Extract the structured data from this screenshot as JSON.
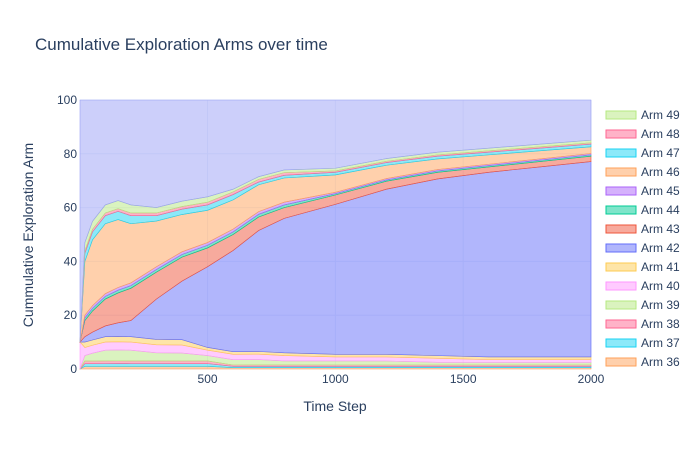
{
  "chart_data": {
    "type": "area",
    "title": "Cumulative Exploration Arms over time",
    "xlabel": "Time Step",
    "ylabel": "Cummulative Exploration Arm",
    "xlim": [
      1,
      2000
    ],
    "ylim": [
      0,
      100
    ],
    "x_ticks": [
      500,
      1000,
      1500,
      2000
    ],
    "y_ticks": [
      0,
      20,
      40,
      60,
      80,
      100
    ],
    "stacked": true,
    "normalized": "percent",
    "grid": true,
    "legend_position": "right",
    "x": [
      1,
      20,
      50,
      100,
      150,
      200,
      300,
      400,
      500,
      600,
      700,
      800,
      1000,
      1200,
      1400,
      1600,
      1800,
      2000
    ],
    "series_colors_cycle": [
      "#FFA15A",
      "#19D3F3",
      "#FF6692",
      "#B6E880",
      "#FF97FF",
      "#FECB52",
      "#636EFA",
      "#EF553B",
      "#00CC96",
      "#AB63FA"
    ],
    "series": [
      {
        "name": "Arm 36",
        "values": [
          0,
          1,
          1,
          1,
          1,
          1,
          1,
          1,
          1,
          0.5,
          0.5,
          0.5,
          0.5,
          0.5,
          0.5,
          0.5,
          0.5,
          0.5
        ]
      },
      {
        "name": "Arm 37",
        "values": [
          0,
          1,
          1,
          1,
          1,
          1,
          1,
          1,
          1,
          0.5,
          0.5,
          0.5,
          0.5,
          0.5,
          0.5,
          0.5,
          0.5,
          0.5
        ]
      },
      {
        "name": "Arm 38",
        "values": [
          0,
          1,
          1,
          1,
          1,
          1,
          1,
          1,
          1,
          0.5,
          0.5,
          0.5,
          0.5,
          0.5,
          0.5,
          0.5,
          0.5,
          0.5
        ]
      },
      {
        "name": "Arm 39",
        "values": [
          0,
          2,
          3,
          4,
          4,
          4,
          3,
          3,
          2,
          2,
          2,
          1.5,
          1.5,
          1.5,
          1,
          1,
          1,
          1
        ]
      },
      {
        "name": "Arm 40",
        "values": [
          10,
          3,
          3,
          3,
          3,
          3,
          3,
          3,
          2,
          2,
          2,
          2,
          1.5,
          1.5,
          1.5,
          1,
          1,
          1
        ]
      },
      {
        "name": "Arm 41",
        "values": [
          0,
          2,
          2,
          2,
          2,
          2,
          2,
          2,
          1,
          1,
          1,
          1,
          1,
          1,
          1,
          1,
          1,
          1
        ]
      },
      {
        "name": "Arm 42",
        "values": [
          0,
          2,
          3,
          4,
          5,
          6,
          15,
          22,
          30,
          38,
          45,
          50,
          56,
          62,
          66,
          69,
          71,
          73
        ]
      },
      {
        "name": "Arm 43",
        "values": [
          0,
          6,
          8,
          10,
          11,
          12,
          10,
          9,
          7,
          6,
          5,
          4,
          3.5,
          3,
          2.5,
          2,
          2,
          2
        ]
      },
      {
        "name": "Arm 44",
        "values": [
          0,
          1,
          1,
          1,
          1,
          1,
          1,
          1,
          1,
          1,
          1,
          1,
          0.5,
          0.5,
          0.5,
          0.5,
          0.5,
          0.5
        ]
      },
      {
        "name": "Arm 45",
        "values": [
          0,
          1,
          1,
          1,
          1,
          1,
          1,
          1,
          1,
          1,
          1,
          1,
          0.5,
          0.5,
          0.5,
          0.5,
          0.5,
          0.5
        ]
      },
      {
        "name": "Arm 46",
        "values": [
          0,
          20,
          25,
          26,
          25,
          22,
          17,
          14,
          12,
          11,
          10,
          9,
          6.5,
          5,
          4,
          3.5,
          3,
          2.5
        ]
      },
      {
        "name": "Arm 47",
        "values": [
          0,
          3,
          3,
          3,
          3,
          3,
          2,
          2,
          2,
          2,
          1,
          1,
          1,
          1,
          1,
          1,
          1,
          1
        ]
      },
      {
        "name": "Arm 48",
        "values": [
          0,
          1,
          1,
          1,
          1,
          1,
          1,
          1,
          1,
          1,
          1,
          1,
          0.5,
          0.5,
          0.5,
          0.5,
          0.5,
          0.5
        ]
      },
      {
        "name": "Arm 49",
        "values": [
          0,
          3,
          3,
          3,
          3,
          3,
          2,
          2,
          2,
          1,
          1,
          1,
          1,
          1,
          1,
          1,
          1,
          1
        ]
      },
      {
        "name": "",
        "values": [
          90,
          53,
          46,
          39,
          37,
          39,
          40,
          38,
          36,
          33.5,
          28.5,
          26,
          25.5,
          22,
          19.5,
          18,
          16.5,
          15
        ]
      }
    ]
  }
}
